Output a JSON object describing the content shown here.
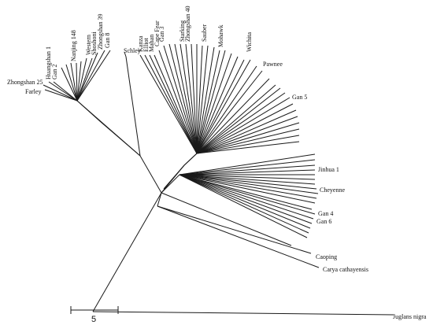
{
  "taxa": [
    {
      "id": "zhongshan25",
      "label": "Zhongshan 25"
    },
    {
      "id": "farley",
      "label": "Farley"
    },
    {
      "id": "huangshan1",
      "label": "Huangshan 1"
    },
    {
      "id": "gan2",
      "label": "Gan 2"
    },
    {
      "id": "nanjing148",
      "label": "Nanjing 148"
    },
    {
      "id": "western",
      "label": "Western"
    },
    {
      "id": "shoshoni",
      "label": "Shoshoni"
    },
    {
      "id": "zhongshan39",
      "label": "Zhongshan 39"
    },
    {
      "id": "gan8",
      "label": "Gan 8"
    },
    {
      "id": "schley",
      "label": "Schley"
    },
    {
      "id": "kanza",
      "label": "Kanza"
    },
    {
      "id": "elliot",
      "label": "Elliot"
    },
    {
      "id": "mahan",
      "label": "Mahan"
    },
    {
      "id": "capefear",
      "label": "Cape Fear"
    },
    {
      "id": "gan3",
      "label": "Gan 3"
    },
    {
      "id": "starking",
      "label": "Starking"
    },
    {
      "id": "zhongshan40",
      "label": "Zhongshan 40"
    },
    {
      "id": "sauber",
      "label": "Sauber"
    },
    {
      "id": "mohawk",
      "label": "Mohawk"
    },
    {
      "id": "wichita",
      "label": "Wichita"
    },
    {
      "id": "pawnee",
      "label": "Pawnee"
    },
    {
      "id": "gan5",
      "label": "Gan 5"
    },
    {
      "id": "jinhua1",
      "label": "Jinhua 1"
    },
    {
      "id": "cheyenne",
      "label": "Cheyenne"
    },
    {
      "id": "gan4",
      "label": "Gan 4"
    },
    {
      "id": "gan6",
      "label": "Gan 6"
    },
    {
      "id": "caoping",
      "label": "Caoping"
    },
    {
      "id": "carya",
      "label": "Carya cathayensis"
    },
    {
      "id": "juglans",
      "label": "Juglans nigra"
    }
  ],
  "scale_bar": {
    "label": "5"
  }
}
